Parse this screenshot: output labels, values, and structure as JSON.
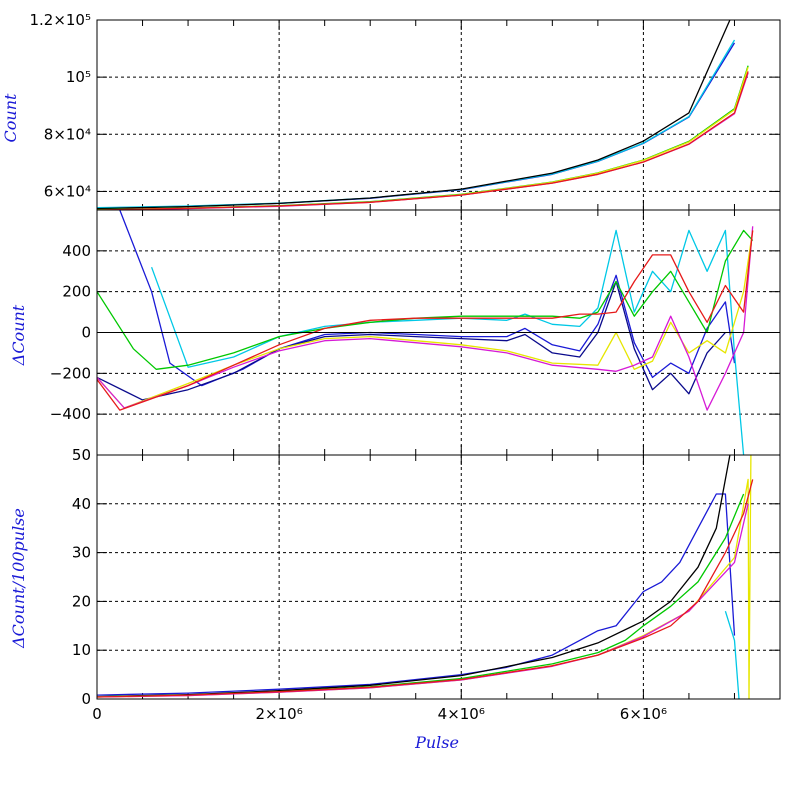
{
  "chart_data": [
    {
      "type": "line",
      "xlabel": "",
      "ylabel": "Count",
      "xlim": [
        0,
        7500000
      ],
      "ylim": [
        53500,
        120000
      ],
      "y_ticks": [
        60000,
        80000,
        100000,
        120000
      ],
      "y_tick_labels": [
        "6×10⁴",
        "8×10⁴",
        "10⁵",
        "1.2×10⁵"
      ],
      "grid": true,
      "series": [
        {
          "color": "#1a1ad6",
          "x": [
            0,
            1000000,
            2000000,
            3000000,
            4000000,
            5000000,
            5500000,
            6000000,
            6500000,
            7000000
          ],
          "y": [
            54200,
            54800,
            55800,
            57600,
            60600,
            66000,
            70500,
            76800,
            86000,
            112000
          ]
        },
        {
          "color": "#00c8e6",
          "x": [
            0,
            1000000,
            2000000,
            3000000,
            4000000,
            5000000,
            5500000,
            6000000,
            6500000,
            7000000
          ],
          "y": [
            54300,
            54900,
            55900,
            57700,
            60700,
            66100,
            70600,
            76900,
            86200,
            113000
          ]
        },
        {
          "color": "#000000",
          "x": [
            0,
            1000000,
            2000000,
            3000000,
            4000000,
            5000000,
            5500000,
            6000000,
            6500000,
            6950000
          ],
          "y": [
            54000,
            54700,
            55800,
            57700,
            60800,
            66400,
            71000,
            77600,
            87500,
            120000
          ]
        },
        {
          "color": "#00c800",
          "x": [
            0,
            1000000,
            2000000,
            3000000,
            4000000,
            5000000,
            5500000,
            6000000,
            6500000,
            7000000,
            7150000
          ],
          "y": [
            53600,
            54200,
            55000,
            56400,
            59000,
            63300,
            66500,
            71000,
            77500,
            89000,
            104000
          ]
        },
        {
          "color": "#e6e600",
          "x": [
            0,
            1000000,
            2000000,
            3000000,
            4000000,
            5000000,
            5500000,
            6000000,
            6500000,
            7000000,
            7150000
          ],
          "y": [
            53500,
            54100,
            54900,
            56300,
            58900,
            63200,
            66400,
            70900,
            77300,
            88600,
            103500
          ]
        },
        {
          "color": "#d61ad6",
          "x": [
            0,
            1000000,
            2000000,
            3000000,
            4000000,
            5000000,
            5500000,
            6000000,
            6500000,
            7000000,
            7150000
          ],
          "y": [
            53400,
            54000,
            54800,
            56200,
            58700,
            62900,
            66000,
            70300,
            76500,
            87200,
            101500
          ]
        },
        {
          "color": "#e61a1a",
          "x": [
            0,
            1000000,
            2000000,
            3000000,
            4000000,
            5000000,
            5500000,
            6000000,
            6500000,
            7000000,
            7150000
          ],
          "y": [
            53500,
            54100,
            54900,
            56200,
            58700,
            62900,
            66000,
            70300,
            76600,
            87500,
            102000
          ]
        }
      ]
    },
    {
      "type": "line",
      "xlabel": "",
      "ylabel": "ΔCount",
      "xlim": [
        0,
        7500000
      ],
      "ylim": [
        -600,
        600
      ],
      "y_ticks": [
        -400,
        -200,
        0,
        200,
        400
      ],
      "y_tick_labels": [
        "−400",
        "−200",
        "0",
        "200",
        "400"
      ],
      "grid": true,
      "series": [
        {
          "color": "#1a1ad6",
          "x": [
            250000,
            600000,
            800000,
            1150000,
            1600000,
            2000000,
            2500000,
            3000000,
            3500000,
            4000000,
            4500000,
            4700000,
            5000000,
            5300000,
            5500000,
            5700000,
            5900000,
            6100000,
            6300000,
            6500000,
            6700000,
            6900000,
            7000000
          ],
          "y": [
            600,
            200,
            -150,
            -260,
            -180,
            -80,
            -10,
            0,
            -10,
            -20,
            -20,
            20,
            -60,
            -90,
            40,
            280,
            -50,
            -220,
            -150,
            -200,
            20,
            150,
            -150
          ]
        },
        {
          "color": "#0a0a8c",
          "x": [
            0,
            500000,
            1000000,
            1500000,
            2000000,
            2500000,
            3000000,
            3500000,
            4000000,
            4500000,
            4700000,
            5000000,
            5300000,
            5500000,
            5700000,
            5900000,
            6100000,
            6300000,
            6500000,
            6700000,
            6900000
          ],
          "y": [
            -220,
            -330,
            -280,
            -200,
            -80,
            -20,
            -10,
            -20,
            -30,
            -40,
            -10,
            -100,
            -120,
            0,
            250,
            -80,
            -280,
            -200,
            -300,
            -100,
            0
          ]
        },
        {
          "color": "#00c8e6",
          "x": [
            600000,
            1000000,
            1500000,
            2000000,
            2500000,
            3000000,
            3500000,
            4000000,
            4500000,
            4700000,
            5000000,
            5300000,
            5500000,
            5700000,
            5900000,
            6100000,
            6300000,
            6500000,
            6700000,
            6900000,
            7000000,
            7100000
          ],
          "y": [
            320,
            -170,
            -120,
            -20,
            30,
            50,
            60,
            70,
            60,
            90,
            40,
            30,
            120,
            500,
            100,
            300,
            200,
            500,
            300,
            500,
            -100,
            -600
          ]
        },
        {
          "color": "#00c800",
          "x": [
            0,
            400000,
            650000,
            1000000,
            1500000,
            2000000,
            2500000,
            3000000,
            3500000,
            4000000,
            4500000,
            5000000,
            5300000,
            5500000,
            5700000,
            5900000,
            6100000,
            6300000,
            6500000,
            6700000,
            6900000,
            7100000,
            7200000
          ],
          "y": [
            200,
            -80,
            -180,
            -160,
            -100,
            -20,
            20,
            50,
            70,
            80,
            80,
            80,
            70,
            100,
            250,
            80,
            200,
            300,
            150,
            0,
            350,
            500,
            450
          ]
        },
        {
          "color": "#e6e600",
          "x": [
            0,
            300000,
            1000000,
            1500000,
            2000000,
            2500000,
            3000000,
            3500000,
            4000000,
            4500000,
            5000000,
            5500000,
            5700000,
            5900000,
            6100000,
            6300000,
            6500000,
            6700000,
            6900000,
            7100000,
            7200000
          ],
          "y": [
            -220,
            -370,
            -250,
            -160,
            -80,
            -30,
            -20,
            -40,
            -60,
            -90,
            -150,
            -160,
            0,
            -180,
            -140,
            50,
            -100,
            -40,
            -100,
            200,
            500
          ]
        },
        {
          "color": "#d61ad6",
          "x": [
            0,
            300000,
            1000000,
            1500000,
            2000000,
            2500000,
            3000000,
            3500000,
            4000000,
            4500000,
            5000000,
            5500000,
            5700000,
            5900000,
            6100000,
            6300000,
            6500000,
            6700000,
            6900000,
            7100000,
            7200000
          ],
          "y": [
            -220,
            -370,
            -260,
            -170,
            -90,
            -40,
            -30,
            -50,
            -70,
            -100,
            -160,
            -180,
            -190,
            -160,
            -120,
            80,
            -120,
            -380,
            -200,
            0,
            520
          ]
        },
        {
          "color": "#e61a1a",
          "x": [
            0,
            250000,
            1000000,
            1500000,
            2000000,
            2500000,
            3000000,
            3500000,
            4000000,
            4500000,
            5000000,
            5300000,
            5500000,
            5700000,
            5900000,
            6100000,
            6300000,
            6500000,
            6700000,
            6900000,
            7100000,
            7200000
          ],
          "y": [
            -230,
            -380,
            -260,
            -160,
            -60,
            20,
            60,
            70,
            70,
            70,
            70,
            90,
            90,
            100,
            250,
            380,
            380,
            200,
            50,
            230,
            100,
            500
          ]
        },
        {
          "color": "#000000",
          "x": [
            0,
            7500000
          ],
          "y": [
            0,
            0
          ]
        }
      ]
    },
    {
      "type": "line",
      "xlabel": "Pulse",
      "ylabel": "ΔCount/100pulse",
      "xlim": [
        0,
        7500000
      ],
      "ylim": [
        0,
        50
      ],
      "x_ticks": [
        0,
        2000000,
        4000000,
        6000000
      ],
      "x_tick_labels": [
        "0",
        "2×10⁶",
        "4×10⁶",
        "6×10⁶"
      ],
      "y_ticks": [
        0,
        10,
        20,
        30,
        40,
        50
      ],
      "y_tick_labels": [
        "0",
        "10",
        "20",
        "30",
        "40",
        "50"
      ],
      "grid": true,
      "series": [
        {
          "color": "#1a1ad6",
          "x": [
            0,
            1000000,
            2000000,
            3000000,
            4000000,
            4500000,
            5000000,
            5500000,
            5700000,
            6000000,
            6200000,
            6400000,
            6600000,
            6800000,
            6900000,
            7000000
          ],
          "y": [
            0.8,
            1.2,
            2,
            3,
            5,
            6.5,
            9,
            14,
            15,
            22,
            24,
            28,
            35,
            42,
            42,
            13
          ]
        },
        {
          "color": "#00c8e6",
          "x": [
            6900000,
            7000000,
            7050000
          ],
          "y": [
            18,
            12,
            0
          ]
        },
        {
          "color": "#000000",
          "x": [
            0,
            1000000,
            2000000,
            3000000,
            4000000,
            5000000,
            5500000,
            6000000,
            6300000,
            6600000,
            6800000,
            6950000
          ],
          "y": [
            0.5,
            0.9,
            1.7,
            2.8,
            4.8,
            8.5,
            11.5,
            16,
            20,
            27,
            35,
            50
          ]
        },
        {
          "color": "#00c800",
          "x": [
            0,
            1000000,
            2000000,
            3000000,
            4000000,
            5000000,
            5500000,
            5800000,
            6000000,
            6300000,
            6600000,
            6900000,
            7100000
          ],
          "y": [
            0.5,
            0.8,
            1.5,
            2.5,
            4.2,
            7.2,
            9.5,
            12,
            15,
            19,
            24,
            33,
            42
          ]
        },
        {
          "color": "#e6e600",
          "x": [
            0,
            1000000,
            2000000,
            3000000,
            4000000,
            5000000,
            5500000,
            6000000,
            6500000,
            7000000,
            7150000,
            7160000,
            7180000
          ],
          "y": [
            0.4,
            0.7,
            1.4,
            2.3,
            3.9,
            6.8,
            9,
            13,
            18,
            29,
            45,
            0,
            50
          ]
        },
        {
          "color": "#d61ad6",
          "x": [
            0,
            1000000,
            2000000,
            3000000,
            4000000,
            5000000,
            5500000,
            6000000,
            6500000,
            7000000,
            7150000
          ],
          "y": [
            0.4,
            0.7,
            1.4,
            2.3,
            3.9,
            6.7,
            9,
            12.8,
            18,
            28,
            40
          ]
        },
        {
          "color": "#e61a1a",
          "x": [
            0,
            1000000,
            2000000,
            3000000,
            4000000,
            5000000,
            5500000,
            6000000,
            6300000,
            6600000,
            6900000,
            7100000,
            7200000
          ],
          "y": [
            0.4,
            0.8,
            1.5,
            2.4,
            4,
            6.8,
            9,
            12.5,
            15,
            20,
            30,
            38,
            45
          ]
        }
      ]
    }
  ]
}
